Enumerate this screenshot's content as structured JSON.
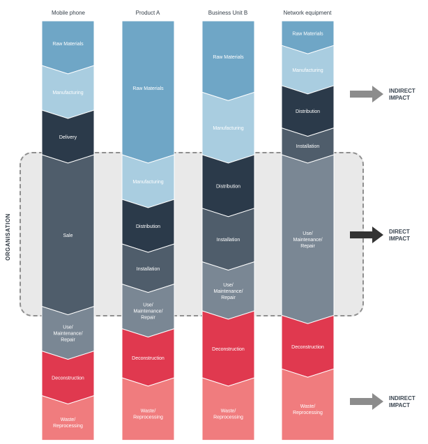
{
  "columns": [
    {
      "title": "Mobile phone",
      "stages": [
        {
          "label": "Raw Materials",
          "color": "#6fa6c6",
          "lines": [
            "Raw Materials"
          ],
          "start": 0.0,
          "end": 1.0
        },
        {
          "label": "Manufacturing",
          "color": "#a9cde0",
          "lines": [
            "Manufacturing"
          ],
          "start": 1.0,
          "end": 2.0
        },
        {
          "label": "Delivery",
          "color": "#2b3a4a",
          "lines": [
            "Delivery"
          ],
          "start": 2.0,
          "end": 3.0
        },
        {
          "label": "Sale",
          "color": "#4f5d6b",
          "lines": [
            "Sale"
          ],
          "start": 3.0,
          "end": 6.4
        },
        {
          "label": "Use/ Maintenance/ Repair",
          "color": "#7a8794",
          "lines": [
            "Use/",
            "Maintenance/",
            "Repair"
          ],
          "start": 6.4,
          "end": 7.4
        },
        {
          "label": "Deconstruction",
          "color": "#e0394f",
          "lines": [
            "Deconstruction"
          ],
          "start": 7.4,
          "end": 8.4
        },
        {
          "label": "Waste/ Reprocessing",
          "color": "#f07c7e",
          "lines": [
            "Waste/",
            "Reprocessing"
          ],
          "start": 8.4,
          "end": 9.4
        }
      ]
    },
    {
      "title": "Product A",
      "stages": [
        {
          "label": "Raw Materials",
          "color": "#6fa6c6",
          "lines": [
            "Raw Materials"
          ],
          "start": 0.0,
          "end": 3.0
        },
        {
          "label": "Manufacturing",
          "color": "#a9cde0",
          "lines": [
            "Manufacturing"
          ],
          "start": 3.0,
          "end": 4.0
        },
        {
          "label": "Distribution",
          "color": "#2b3a4a",
          "lines": [
            "Distribution"
          ],
          "start": 4.0,
          "end": 5.0
        },
        {
          "label": "Installation",
          "color": "#4f5d6b",
          "lines": [
            "Installation"
          ],
          "start": 5.0,
          "end": 5.9
        },
        {
          "label": "Use/ Maintenance/ Repair",
          "color": "#7a8794",
          "lines": [
            "Use/",
            "Maintenance/",
            "Repair"
          ],
          "start": 5.9,
          "end": 6.9
        },
        {
          "label": "Deconstruction",
          "color": "#e0394f",
          "lines": [
            "Deconstruction"
          ],
          "start": 6.9,
          "end": 8.0
        },
        {
          "label": "Waste/ Reprocessing",
          "color": "#f07c7e",
          "lines": [
            "Waste/",
            "Reprocessing"
          ],
          "start": 8.0,
          "end": 9.4
        }
      ]
    },
    {
      "title": "Business Unit B",
      "stages": [
        {
          "label": "Raw Materials",
          "color": "#6fa6c6",
          "lines": [
            "Raw Materials"
          ],
          "start": 0.0,
          "end": 1.6
        },
        {
          "label": "Manufacturing",
          "color": "#a9cde0",
          "lines": [
            "Manufacturing"
          ],
          "start": 1.6,
          "end": 3.0
        },
        {
          "label": "Distribution",
          "color": "#2b3a4a",
          "lines": [
            "Distribution"
          ],
          "start": 3.0,
          "end": 4.2
        },
        {
          "label": "Installation",
          "color": "#4f5d6b",
          "lines": [
            "Installation"
          ],
          "start": 4.2,
          "end": 5.4
        },
        {
          "label": "Use/ Maintenance/ Repair",
          "color": "#7a8794",
          "lines": [
            "Use/",
            "Maintenance/",
            "Repair"
          ],
          "start": 5.4,
          "end": 6.5
        },
        {
          "label": "Deconstruction",
          "color": "#e0394f",
          "lines": [
            "Deconstruction"
          ],
          "start": 6.5,
          "end": 8.0
        },
        {
          "label": "Waste/ Reprocessing",
          "color": "#f07c7e",
          "lines": [
            "Waste/",
            "Reprocessing"
          ],
          "start": 8.0,
          "end": 9.4
        }
      ]
    },
    {
      "title": "Network equipment",
      "stages": [
        {
          "label": "Raw Materials",
          "color": "#6fa6c6",
          "lines": [
            "Raw Materials"
          ],
          "start": 0.0,
          "end": 0.55
        },
        {
          "label": "Manufacturing",
          "color": "#a9cde0",
          "lines": [
            "Manufacturing"
          ],
          "start": 0.55,
          "end": 1.45
        },
        {
          "label": "Distribution",
          "color": "#2b3a4a",
          "lines": [
            "Distribution"
          ],
          "start": 1.45,
          "end": 2.4
        },
        {
          "label": "Installation",
          "color": "#4f5d6b",
          "lines": [
            "Installation"
          ],
          "start": 2.4,
          "end": 3.0
        },
        {
          "label": "Use/ Maintenance/ Repair",
          "color": "#7a8794",
          "lines": [
            "Use/",
            "Maintenance/",
            "Repair"
          ],
          "start": 3.0,
          "end": 6.6
        },
        {
          "label": "Deconstruction",
          "color": "#e0394f",
          "lines": [
            "Deconstruction"
          ],
          "start": 6.6,
          "end": 7.8
        },
        {
          "label": "Waste/ Reprocessing",
          "color": "#f07c7e",
          "lines": [
            "Waste/",
            "Reprocessing"
          ],
          "start": 7.8,
          "end": 9.4
        }
      ]
    }
  ],
  "organisation_label": "ORGANISATION",
  "impacts": [
    {
      "label_line1": "INDIRECT",
      "label_line2": "IMPACT",
      "arrow_color": "#8c8c8c"
    },
    {
      "label_line1": "DIRECT",
      "label_line2": "IMPACT",
      "arrow_color": "#333333"
    },
    {
      "label_line1": "INDIRECT",
      "label_line2": "IMPACT",
      "arrow_color": "#8c8c8c"
    }
  ]
}
